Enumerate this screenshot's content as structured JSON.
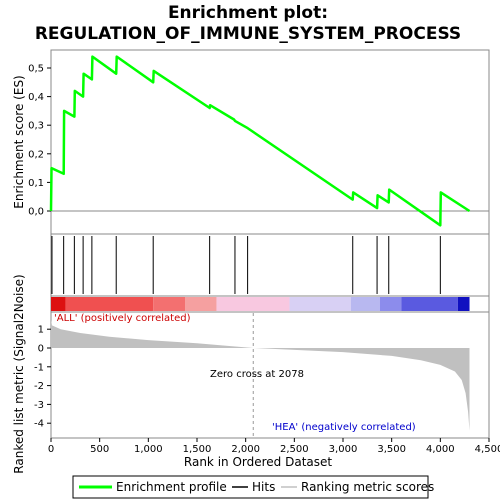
{
  "title_line1": "Enrichment plot:",
  "title_line2": "REGULATION_OF_IMMUNE_SYSTEM_PROCESS",
  "colors": {
    "enrichment": "#00ff00",
    "hits": "#000000",
    "metric_fill": "#c0c0c0",
    "pos_label": "#cc0000",
    "neg_label": "#0000cc"
  },
  "chart_data": {
    "type": "line",
    "x_max": 4300,
    "top_panel": {
      "ylabel": "Enrichment score (ES)",
      "ylim": [
        -0.06,
        0.57
      ],
      "yticks": [
        0.0,
        0.1,
        0.2,
        0.3,
        0.4,
        0.5
      ],
      "ytick_labels": [
        "0,0",
        "0,1",
        "0,2",
        "0,3",
        "0,4",
        "0,5"
      ],
      "series_name": "Enrichment profile",
      "points": [
        [
          0,
          0.0
        ],
        [
          5,
          0.15
        ],
        [
          130,
          0.13
        ],
        [
          135,
          0.35
        ],
        [
          240,
          0.33
        ],
        [
          245,
          0.42
        ],
        [
          330,
          0.4
        ],
        [
          335,
          0.48
        ],
        [
          420,
          0.46
        ],
        [
          425,
          0.54
        ],
        [
          670,
          0.48
        ],
        [
          675,
          0.54
        ],
        [
          1050,
          0.45
        ],
        [
          1055,
          0.49
        ],
        [
          1630,
          0.36
        ],
        [
          1635,
          0.37
        ],
        [
          1880,
          0.32
        ],
        [
          1890,
          0.315
        ],
        [
          2020,
          0.29
        ],
        [
          3100,
          0.04
        ],
        [
          3105,
          0.065
        ],
        [
          3350,
          0.01
        ],
        [
          3355,
          0.055
        ],
        [
          3470,
          0.03
        ],
        [
          3475,
          0.075
        ],
        [
          4000,
          -0.05
        ],
        [
          4005,
          0.065
        ],
        [
          4300,
          0.0
        ]
      ]
    },
    "hits": [
      10,
      130,
      240,
      330,
      420,
      670,
      1050,
      1630,
      1890,
      2020,
      3100,
      3350,
      3470,
      4000
    ],
    "bottom_panel": {
      "ylabel": "Ranked list metric (Signal2Noise)",
      "ylim": [
        -4.5,
        1.6
      ],
      "yticks": [
        1,
        0,
        -1,
        -2,
        -3,
        -4
      ],
      "ytick_labels": [
        "1",
        "0",
        "-1",
        "-2",
        "-3",
        "-4"
      ],
      "xlabel": "Rank in Ordered Dataset",
      "xticks": [
        0,
        500,
        1000,
        1500,
        2000,
        2500,
        3000,
        3500,
        4000,
        4500
      ],
      "xtick_labels": [
        "0",
        "500",
        "1,000",
        "1,500",
        "2,000",
        "2,500",
        "3,000",
        "3,500",
        "4,000",
        "4,500"
      ],
      "metric_profile": [
        [
          0,
          1.5
        ],
        [
          10,
          1.2
        ],
        [
          100,
          1.0
        ],
        [
          300,
          0.8
        ],
        [
          600,
          0.6
        ],
        [
          1000,
          0.42
        ],
        [
          1500,
          0.25
        ],
        [
          1800,
          0.12
        ],
        [
          2078,
          0.0
        ],
        [
          2500,
          -0.1
        ],
        [
          3000,
          -0.22
        ],
        [
          3500,
          -0.42
        ],
        [
          3800,
          -0.65
        ],
        [
          4000,
          -0.9
        ],
        [
          4150,
          -1.25
        ],
        [
          4220,
          -1.7
        ],
        [
          4260,
          -2.4
        ],
        [
          4285,
          -3.4
        ],
        [
          4300,
          -4.4
        ]
      ],
      "zero_cross": 2078,
      "zero_cross_label": "Zero cross at 2078",
      "pos_label": "'ALL' (positively correlated)",
      "neg_label": "'HEA' (negatively correlated)"
    },
    "color_bar": [
      {
        "from": 0,
        "to": 150,
        "color": "#dd1111"
      },
      {
        "from": 150,
        "to": 1050,
        "color": "#f05050"
      },
      {
        "from": 1050,
        "to": 1380,
        "color": "#f37070"
      },
      {
        "from": 1380,
        "to": 1700,
        "color": "#f5a0a0"
      },
      {
        "from": 1700,
        "to": 2450,
        "color": "#f8c8e0"
      },
      {
        "from": 2450,
        "to": 3080,
        "color": "#d8d0f4"
      },
      {
        "from": 3080,
        "to": 3380,
        "color": "#b8b8f0"
      },
      {
        "from": 3380,
        "to": 3600,
        "color": "#8c8cec"
      },
      {
        "from": 3600,
        "to": 4180,
        "color": "#5a5ae0"
      },
      {
        "from": 4180,
        "to": 4300,
        "color": "#1010c0"
      }
    ],
    "legend": [
      "Enrichment profile",
      "Hits",
      "Ranking metric scores"
    ]
  }
}
